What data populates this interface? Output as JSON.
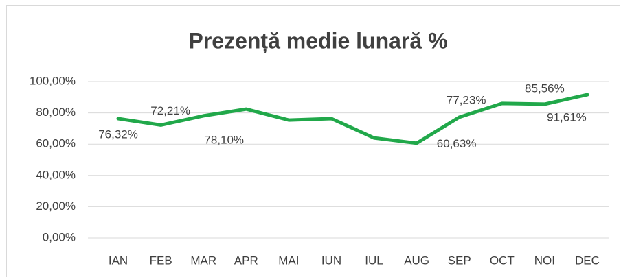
{
  "chart_data": {
    "type": "line",
    "title": "Prezență medie lunară %",
    "categories": [
      "IAN",
      "FEB",
      "MAR",
      "APR",
      "MAI",
      "IUN",
      "IUL",
      "AUG",
      "SEP",
      "OCT",
      "NOI",
      "DEC"
    ],
    "series": [
      {
        "name": "Prezență medie lunară %",
        "color": "#21a84a",
        "values": [
          76.32,
          72.21,
          78.1,
          82.4,
          75.4,
          76.3,
          64,
          60.63,
          77.23,
          86,
          85.56,
          91.61
        ],
        "value_labels": [
          "76,32%",
          "72,21%",
          "78,10%",
          null,
          null,
          null,
          null,
          "60,63%",
          "77,23%",
          null,
          "85,56%",
          "91,61%"
        ]
      }
    ],
    "ylim": [
      0,
      100
    ],
    "yticks": [
      {
        "value": 0,
        "label": "0,00%"
      },
      {
        "value": 20,
        "label": "20,00%"
      },
      {
        "value": 40,
        "label": "40,00%"
      },
      {
        "value": 60,
        "label": "60,00%"
      },
      {
        "value": 80,
        "label": "80,00%"
      },
      {
        "value": 100,
        "label": "100,00%"
      }
    ],
    "grid": true
  }
}
